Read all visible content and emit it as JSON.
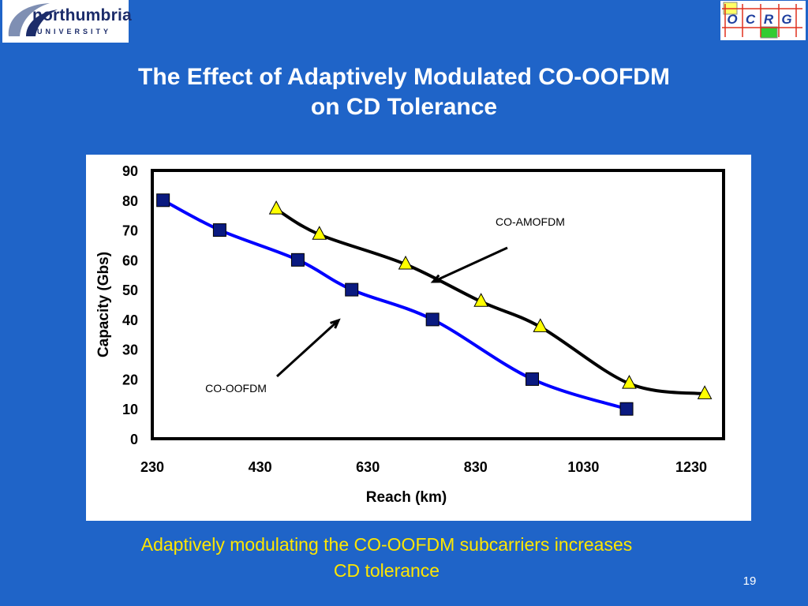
{
  "logos": {
    "left": {
      "line1": "northumbria",
      "line2": "UNIVERSITY"
    },
    "right": {
      "letters": [
        "O",
        "C",
        "R",
        "G"
      ],
      "colors": {
        "yellow": "#ffff66",
        "green": "#33cc33",
        "red": "#e0301e",
        "blue": "#1f3f9f"
      }
    }
  },
  "slide": {
    "title_line1": "The Effect of Adaptively Modulated CO-OOFDM",
    "title_line2": "on CD Tolerance",
    "caption_line1": "Adaptively modulating the CO-OOFDM subcarriers  increases",
    "caption_line2": "CD tolerance",
    "page_number": "19"
  },
  "colors": {
    "background": "#1f64c8",
    "caption": "#ffe600",
    "co_oofdm_line": "#0000ff",
    "co_oofdm_marker": "#0a1a80",
    "co_amofdm_line": "#000000",
    "co_amofdm_marker": "#ffff00"
  },
  "chart_data": {
    "type": "line",
    "xlabel": "Reach (km)",
    "ylabel": "Capacity (Gbs)",
    "xlim": [
      230,
      1290
    ],
    "ylim": [
      0,
      90
    ],
    "xticks": [
      "230",
      "430",
      "630",
      "830",
      "1030",
      "1230"
    ],
    "yticks": [
      "0",
      "10",
      "20",
      "30",
      "40",
      "50",
      "60",
      "70",
      "80",
      "90"
    ],
    "grid": false,
    "series": [
      {
        "name": "CO-OOFDM",
        "marker": "square",
        "x": [
          250,
          355,
          500,
          600,
          750,
          935,
          1110
        ],
        "y": [
          80,
          70,
          60,
          50,
          40,
          20,
          10
        ]
      },
      {
        "name": "CO-AMOFDM",
        "marker": "triangle",
        "x": [
          460,
          540,
          700,
          840,
          950,
          1115,
          1255
        ],
        "y": [
          77,
          68.5,
          58.5,
          46,
          37.5,
          18.5,
          15
        ]
      }
    ],
    "annotations": [
      {
        "text": "CO-AMOFDM",
        "arrow_to_series": "CO-AMOFDM"
      },
      {
        "text": "CO-OOFDM",
        "arrow_to_series": "CO-OOFDM"
      }
    ]
  }
}
